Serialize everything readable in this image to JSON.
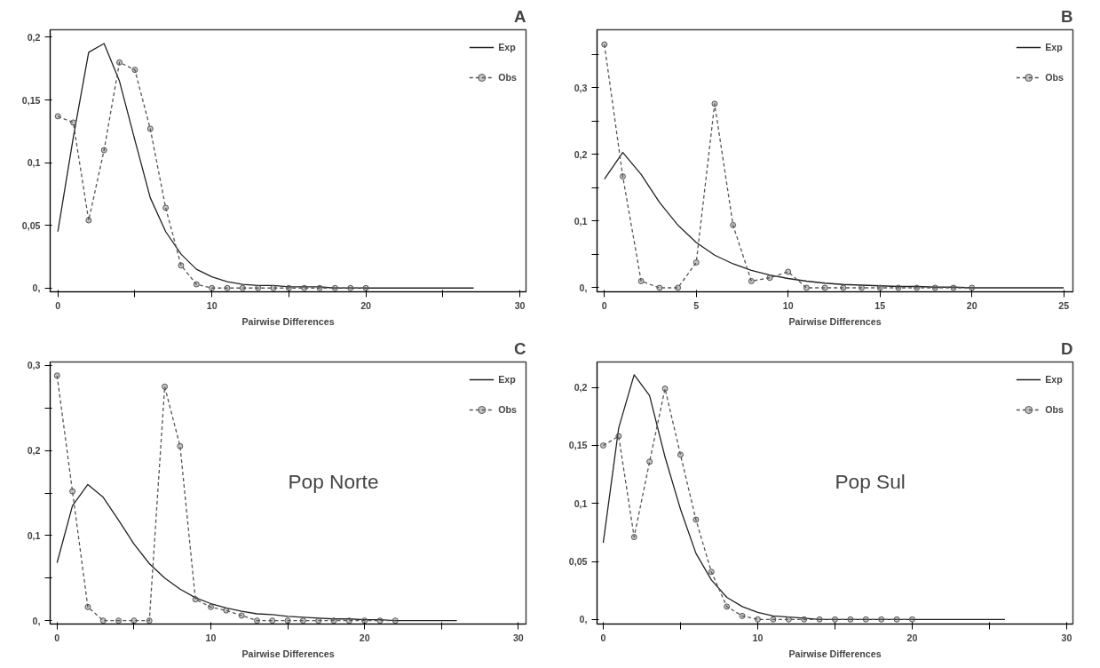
{
  "chart_data": [
    {
      "type": "line",
      "title": "A",
      "xlabel": "Pairwise Differences",
      "xlim": [
        -0.5,
        30.4
      ],
      "ylim": [
        -0.003,
        0.206
      ],
      "xticks": [
        0,
        {
          "value": 5,
          "label": null
        },
        10,
        {
          "value": 15,
          "label": null
        },
        20,
        {
          "value": 25,
          "label": null
        },
        30
      ],
      "yticks": [
        {
          "value": 0,
          "label": "0,"
        },
        {
          "value": 0.05,
          "label": "0,05"
        },
        {
          "value": 0.1,
          "label": "0,1"
        },
        {
          "value": 0.15,
          "label": "0,15"
        },
        {
          "value": 0.2,
          "label": "0,2"
        }
      ],
      "legend": "top right",
      "grid": false,
      "series": [
        {
          "name": "Exp",
          "color": "#222222",
          "line_style": "solid",
          "marker": "none",
          "x": [
            0,
            1,
            2,
            3,
            4,
            5,
            6,
            7,
            8,
            9,
            10,
            11,
            12,
            13,
            14,
            15,
            16,
            17,
            18,
            19,
            20,
            21,
            22,
            23,
            24,
            25,
            26,
            27
          ],
          "values": [
            0.045,
            0.12,
            0.188,
            0.195,
            0.165,
            0.118,
            0.072,
            0.045,
            0.027,
            0.015,
            0.009,
            0.005,
            0.003,
            0.002,
            0.002,
            0.001,
            0.001,
            0.001,
            0,
            0,
            0,
            0,
            0,
            0,
            0,
            0,
            0,
            0
          ]
        },
        {
          "name": "Obs",
          "color": "#555555",
          "line_style": "dashed",
          "marker": "circle",
          "x": [
            0,
            1,
            2,
            3,
            4,
            5,
            6,
            7,
            8,
            9,
            10,
            11,
            12,
            13,
            14,
            15,
            16,
            17,
            18,
            19,
            20
          ],
          "values": [
            0.137,
            0.132,
            0.054,
            0.11,
            0.18,
            0.174,
            0.127,
            0.064,
            0.018,
            0.003,
            0,
            0,
            0,
            0,
            0,
            0,
            0,
            0,
            0,
            0,
            0
          ]
        }
      ]
    },
    {
      "type": "line",
      "title": "B",
      "xlabel": "Pairwise Differences",
      "xlim": [
        -0.4,
        25.5
      ],
      "ylim": [
        -0.006,
        0.387
      ],
      "xticks": [
        0,
        5,
        10,
        15,
        20,
        25
      ],
      "yticks": [
        {
          "value": 0,
          "label": "0,"
        },
        {
          "value": 0.05,
          "label": null
        },
        {
          "value": 0.1,
          "label": "0,1"
        },
        {
          "value": 0.15,
          "label": null
        },
        {
          "value": 0.2,
          "label": "0,2"
        },
        {
          "value": 0.25,
          "label": null
        },
        {
          "value": 0.3,
          "label": "0,3"
        },
        {
          "value": 0.35,
          "label": null
        }
      ],
      "legend": "top right",
      "grid": false,
      "series": [
        {
          "name": "Exp",
          "color": "#222222",
          "line_style": "solid",
          "marker": "none",
          "x": [
            0,
            1,
            2,
            3,
            4,
            5,
            6,
            7,
            8,
            9,
            10,
            11,
            12,
            13,
            14,
            15,
            16,
            17,
            18,
            19,
            20,
            21,
            22,
            23,
            24,
            25
          ],
          "values": [
            0.163,
            0.203,
            0.17,
            0.128,
            0.094,
            0.068,
            0.049,
            0.036,
            0.026,
            0.019,
            0.014,
            0.01,
            0.007,
            0.005,
            0.004,
            0.003,
            0.002,
            0.002,
            0.001,
            0.001,
            0,
            0,
            0,
            0,
            0,
            0
          ]
        },
        {
          "name": "Obs",
          "color": "#555555",
          "line_style": "dashed",
          "marker": "circle",
          "x": [
            0,
            1,
            2,
            3,
            4,
            5,
            6,
            7,
            8,
            9,
            10,
            11,
            12,
            13,
            14,
            15,
            16,
            17,
            18,
            19,
            20
          ],
          "values": [
            0.365,
            0.167,
            0.01,
            0,
            0,
            0.038,
            0.276,
            0.094,
            0.01,
            0.015,
            0.024,
            0,
            0,
            0,
            0,
            0,
            0,
            0,
            0,
            0,
            0
          ]
        }
      ]
    },
    {
      "type": "line",
      "title": "C",
      "xlabel": "Pairwise Differences",
      "annotations": [
        "Pop Norte"
      ],
      "xlim": [
        -0.45,
        30.5
      ],
      "ylim": [
        -0.004,
        0.304
      ],
      "xticks": [
        0,
        {
          "value": 5,
          "label": null
        },
        10,
        {
          "value": 15,
          "label": null
        },
        20,
        {
          "value": 25,
          "label": null
        },
        30
      ],
      "yticks": [
        {
          "value": 0,
          "label": "0,"
        },
        {
          "value": 0.05,
          "label": null
        },
        {
          "value": 0.1,
          "label": "0,1"
        },
        {
          "value": 0.15,
          "label": null
        },
        {
          "value": 0.2,
          "label": "0,2"
        },
        {
          "value": 0.25,
          "label": null
        },
        {
          "value": 0.3,
          "label": "0,3"
        }
      ],
      "legend": "top right",
      "grid": false,
      "series": [
        {
          "name": "Exp",
          "color": "#222222",
          "line_style": "solid",
          "marker": "none",
          "x": [
            0,
            1,
            2,
            3,
            4,
            5,
            6,
            7,
            8,
            9,
            10,
            11,
            12,
            13,
            14,
            15,
            16,
            17,
            18,
            19,
            20,
            21,
            22,
            23,
            24,
            25,
            26
          ],
          "values": [
            0.068,
            0.135,
            0.16,
            0.145,
            0.118,
            0.09,
            0.067,
            0.05,
            0.037,
            0.027,
            0.02,
            0.015,
            0.011,
            0.008,
            0.007,
            0.005,
            0.004,
            0.003,
            0.002,
            0.002,
            0.001,
            0.001,
            0,
            0,
            0,
            0,
            0
          ]
        },
        {
          "name": "Obs",
          "color": "#555555",
          "line_style": "dashed",
          "marker": "circle",
          "x": [
            0,
            1,
            2,
            3,
            4,
            5,
            6,
            7,
            8,
            9,
            10,
            11,
            12,
            13,
            14,
            15,
            16,
            17,
            18,
            19,
            20,
            21,
            22
          ],
          "values": [
            0.288,
            0.152,
            0.016,
            0,
            0,
            0,
            0,
            0.275,
            0.205,
            0.025,
            0.016,
            0.012,
            0.006,
            0,
            0,
            0,
            0,
            0,
            0,
            0,
            0,
            0,
            0
          ]
        }
      ]
    },
    {
      "type": "line",
      "title": "D",
      "xlabel": "Pairwise Differences",
      "annotations": [
        "Pop Sul"
      ],
      "xlim": [
        -0.4,
        30.4
      ],
      "ylim": [
        -0.004,
        0.222
      ],
      "xticks": [
        0,
        {
          "value": 5,
          "label": null
        },
        10,
        {
          "value": 15,
          "label": null
        },
        20,
        {
          "value": 25,
          "label": null
        },
        30
      ],
      "yticks": [
        {
          "value": 0,
          "label": "0,"
        },
        {
          "value": 0.05,
          "label": "0,05"
        },
        {
          "value": 0.1,
          "label": "0,1"
        },
        {
          "value": 0.15,
          "label": "0,15"
        },
        {
          "value": 0.2,
          "label": "0,2"
        }
      ],
      "legend": "top right",
      "grid": false,
      "series": [
        {
          "name": "Exp",
          "color": "#222222",
          "line_style": "solid",
          "marker": "none",
          "x": [
            0,
            1,
            2,
            3,
            4,
            5,
            6,
            7,
            8,
            9,
            10,
            11,
            12,
            13,
            14,
            15,
            16,
            17,
            18,
            19,
            20,
            21,
            22,
            23,
            24,
            25,
            26
          ],
          "values": [
            0.066,
            0.165,
            0.211,
            0.193,
            0.14,
            0.095,
            0.057,
            0.034,
            0.019,
            0.011,
            0.006,
            0.003,
            0.002,
            0.001,
            0,
            0,
            0,
            0,
            0,
            0,
            0,
            0,
            0,
            0,
            0,
            0,
            0
          ]
        },
        {
          "name": "Obs",
          "color": "#555555",
          "line_style": "dashed",
          "marker": "circle",
          "x": [
            0,
            1,
            2,
            3,
            4,
            5,
            6,
            7,
            8,
            9,
            10,
            11,
            12,
            13,
            14,
            15,
            16,
            17,
            18,
            19,
            20
          ],
          "values": [
            0.15,
            0.158,
            0.071,
            0.136,
            0.199,
            0.142,
            0.086,
            0.041,
            0.011,
            0.003,
            0,
            0,
            0,
            0,
            0,
            0,
            0,
            0,
            0,
            0,
            0
          ]
        }
      ]
    }
  ]
}
